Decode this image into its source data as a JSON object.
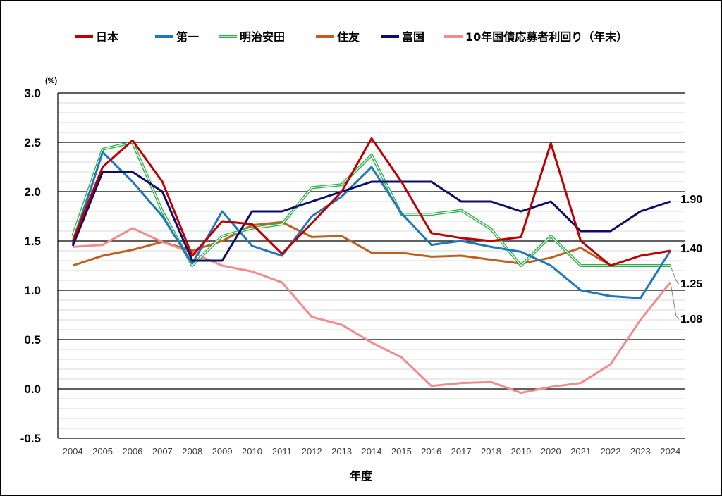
{
  "chart_data": {
    "type": "line",
    "ylabel_unit": "(%)",
    "xlabel": "年度",
    "ylim": [
      -0.5,
      3.0
    ],
    "yticks": [
      "3.0",
      "2.5",
      "2.0",
      "1.5",
      "1.0",
      "0.5",
      "0.0",
      "-0.5"
    ],
    "x": [
      2004,
      2005,
      2006,
      2007,
      2008,
      2009,
      2010,
      2011,
      2012,
      2013,
      2014,
      2015,
      2016,
      2017,
      2018,
      2019,
      2020,
      2021,
      2022,
      2023,
      2024
    ],
    "series": [
      {
        "name": "日本",
        "color": "#c00000",
        "values": [
          1.5,
          2.25,
          2.52,
          2.1,
          1.35,
          1.7,
          1.67,
          1.37,
          1.68,
          2.0,
          2.54,
          2.1,
          1.58,
          1.53,
          1.5,
          1.54,
          2.49,
          1.5,
          1.25,
          1.35,
          1.4
        ]
      },
      {
        "name": "第一",
        "color": "#1f77c0",
        "values": [
          1.47,
          2.4,
          2.1,
          1.75,
          1.27,
          1.8,
          1.45,
          1.35,
          1.75,
          1.95,
          2.25,
          1.78,
          1.46,
          1.5,
          1.44,
          1.39,
          1.25,
          1.0,
          0.94,
          0.92,
          1.4
        ]
      },
      {
        "name": "明治安田",
        "color": "#2db34a",
        "double": true,
        "values": [
          1.55,
          2.43,
          2.5,
          1.8,
          1.25,
          1.55,
          1.63,
          1.67,
          2.04,
          2.07,
          2.37,
          1.77,
          1.77,
          1.81,
          1.62,
          1.25,
          1.55,
          1.25,
          1.25,
          1.25,
          1.25
        ]
      },
      {
        "name": "住友",
        "color": "#c0601e",
        "values": [
          1.25,
          1.35,
          1.41,
          1.49,
          1.4,
          1.5,
          1.66,
          1.69,
          1.54,
          1.55,
          1.38,
          1.38,
          1.34,
          1.35,
          1.31,
          1.27,
          1.33,
          1.43,
          1.25,
          1.25,
          1.25
        ]
      },
      {
        "name": "富国",
        "color": "#0d0d6b",
        "values": [
          1.45,
          2.2,
          2.2,
          2.0,
          1.3,
          1.3,
          1.8,
          1.8,
          1.9,
          2.0,
          2.1,
          2.1,
          2.1,
          1.9,
          1.9,
          1.8,
          1.9,
          1.6,
          1.6,
          1.8,
          1.9
        ]
      },
      {
        "name": "10年国債応募者利回り（年末）",
        "color": "#f28b8b",
        "values": [
          1.44,
          1.46,
          1.63,
          1.49,
          1.38,
          1.25,
          1.19,
          1.08,
          0.73,
          0.65,
          0.47,
          0.32,
          0.03,
          0.06,
          0.07,
          -0.04,
          0.02,
          0.06,
          0.25,
          0.7,
          1.08
        ]
      }
    ],
    "end_labels": [
      "1.90",
      "1.40",
      "1.25",
      "1.08"
    ],
    "legend_position": "top"
  }
}
